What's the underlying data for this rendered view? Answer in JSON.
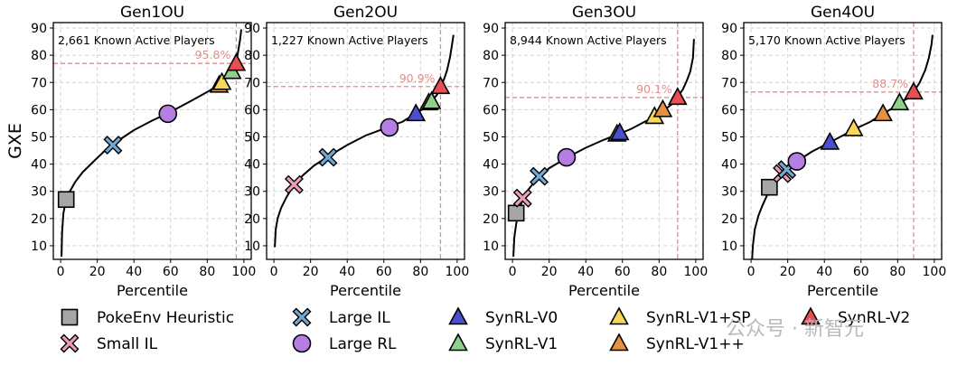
{
  "chart_data": [
    {
      "type": "line+scatter",
      "title": "Gen1OU",
      "annotation": "2,661 Known Active Players",
      "threshold_label": "95.8%",
      "threshold_x": 95.8,
      "threshold_y": 77,
      "xlabel": "Percentile",
      "ylabel": "GXE",
      "xlim": [
        -4,
        104
      ],
      "ylim": [
        5,
        92
      ],
      "xticks": [
        0,
        20,
        40,
        60,
        80,
        100
      ],
      "yticks": [
        10,
        20,
        30,
        40,
        50,
        60,
        70,
        80,
        90
      ],
      "curve": [
        [
          0.5,
          6
        ],
        [
          0.8,
          15
        ],
        [
          1.5,
          22
        ],
        [
          3,
          27
        ],
        [
          5,
          30
        ],
        [
          8,
          33.5
        ],
        [
          12,
          37
        ],
        [
          18,
          41
        ],
        [
          25,
          45.5
        ],
        [
          30,
          48
        ],
        [
          40,
          52.5
        ],
        [
          50,
          56
        ],
        [
          58,
          58.5
        ],
        [
          65,
          61
        ],
        [
          72,
          63.5
        ],
        [
          80,
          66.5
        ],
        [
          86,
          69
        ],
        [
          90,
          71.5
        ],
        [
          93,
          74
        ],
        [
          95,
          77
        ],
        [
          96.5,
          80
        ],
        [
          97.5,
          84
        ],
        [
          98,
          86
        ],
        [
          98.6,
          89.5
        ]
      ],
      "points": [
        {
          "agent": "PokeEnv Heuristic",
          "x": 3,
          "y": 27
        },
        {
          "agent": "Large IL",
          "x": 28.5,
          "y": 47
        },
        {
          "agent": "Large RL",
          "x": 58.5,
          "y": 58.5
        },
        {
          "agent": "SynRL-V1++",
          "x": 86.5,
          "y": 69
        },
        {
          "agent": "SynRL-V1+SP",
          "x": 88,
          "y": 70
        },
        {
          "agent": "SynRL-V1",
          "x": 93.5,
          "y": 74
        },
        {
          "agent": "SynRL-V2",
          "x": 95.8,
          "y": 77
        }
      ]
    },
    {
      "type": "line+scatter",
      "title": "Gen2OU",
      "annotation": "1,227 Known Active Players",
      "threshold_label": "90.9%",
      "threshold_x": 90.9,
      "threshold_y": 68.5,
      "xlabel": "Percentile",
      "ylabel": "",
      "xlim": [
        -4,
        104
      ],
      "ylim": [
        5,
        92
      ],
      "xticks": [
        0,
        20,
        40,
        60,
        80,
        100
      ],
      "yticks": [
        10,
        20,
        30,
        40,
        50,
        60,
        70,
        80,
        90
      ],
      "curve": [
        [
          0.5,
          9.5
        ],
        [
          1,
          16
        ],
        [
          2,
          20
        ],
        [
          4,
          24
        ],
        [
          7,
          28
        ],
        [
          11,
          32.5
        ],
        [
          16,
          36
        ],
        [
          22,
          39.5
        ],
        [
          30,
          43
        ],
        [
          40,
          47
        ],
        [
          50,
          50.5
        ],
        [
          60,
          53
        ],
        [
          63.5,
          54
        ],
        [
          70,
          55.5
        ],
        [
          77,
          58.5
        ],
        [
          82,
          60.5
        ],
        [
          86,
          63
        ],
        [
          89,
          65.5
        ],
        [
          91,
          68.5
        ],
        [
          93,
          71.5
        ],
        [
          94.5,
          74.5
        ],
        [
          96,
          79
        ],
        [
          97,
          83
        ],
        [
          98,
          87.5
        ]
      ],
      "points": [
        {
          "agent": "Small IL",
          "x": 11,
          "y": 32.5
        },
        {
          "agent": "Large IL",
          "x": 29.5,
          "y": 42.5
        },
        {
          "agent": "Large RL",
          "x": 63,
          "y": 53.5
        },
        {
          "agent": "SynRL-V0",
          "x": 77.5,
          "y": 58.5
        },
        {
          "agent": "SynRL-V1++",
          "x": 84.5,
          "y": 62.5
        },
        {
          "agent": "SynRL-V1",
          "x": 86,
          "y": 63
        },
        {
          "agent": "SynRL-V2",
          "x": 90.9,
          "y": 68.5
        }
      ]
    },
    {
      "type": "line+scatter",
      "title": "Gen3OU",
      "annotation": "8,944 Known Active Players",
      "threshold_label": "90.1%",
      "threshold_x": 90.1,
      "threshold_y": 64.5,
      "xlabel": "Percentile",
      "ylabel": "",
      "xlim": [
        -4,
        104
      ],
      "ylim": [
        5,
        92
      ],
      "xticks": [
        0,
        20,
        40,
        60,
        80,
        100
      ],
      "yticks": [
        10,
        20,
        30,
        40,
        50,
        60,
        70,
        80,
        90
      ],
      "curve": [
        [
          0.5,
          6
        ],
        [
          1,
          13
        ],
        [
          2,
          18
        ],
        [
          3,
          22
        ],
        [
          5,
          26
        ],
        [
          8,
          30
        ],
        [
          12,
          33.5
        ],
        [
          15,
          35.5
        ],
        [
          20,
          38.5
        ],
        [
          30,
          42.5
        ],
        [
          40,
          46
        ],
        [
          50,
          49
        ],
        [
          58,
          51
        ],
        [
          65,
          53
        ],
        [
          72,
          55.5
        ],
        [
          78,
          57.5
        ],
        [
          83,
          60
        ],
        [
          87,
          62
        ],
        [
          90,
          64.5
        ],
        [
          93,
          67.5
        ],
        [
          95,
          70.5
        ],
        [
          97,
          74
        ],
        [
          98.5,
          79
        ],
        [
          99,
          86
        ]
      ],
      "points": [
        {
          "agent": "PokeEnv Heuristic",
          "x": 2,
          "y": 22
        },
        {
          "agent": "Small IL",
          "x": 5.5,
          "y": 27.5
        },
        {
          "agent": "Large IL",
          "x": 14.5,
          "y": 35.5
        },
        {
          "agent": "Large RL",
          "x": 29.5,
          "y": 42.5
        },
        {
          "agent": "SynRL-V1",
          "x": 57,
          "y": 51
        },
        {
          "agent": "SynRL-V0",
          "x": 58.5,
          "y": 51.5
        },
        {
          "agent": "SynRL-V1+SP",
          "x": 77.5,
          "y": 57.5
        },
        {
          "agent": "SynRL-V1++",
          "x": 82,
          "y": 60
        },
        {
          "agent": "SynRL-V2",
          "x": 90.1,
          "y": 64.5
        }
      ]
    },
    {
      "type": "line+scatter",
      "title": "Gen4OU",
      "annotation": "5,170 Known Active Players",
      "threshold_label": "88.7%",
      "threshold_x": 88.7,
      "threshold_y": 66.5,
      "xlabel": "Percentile",
      "ylabel": "",
      "xlim": [
        -4,
        104
      ],
      "ylim": [
        5,
        92
      ],
      "xticks": [
        0,
        20,
        40,
        60,
        80,
        100
      ],
      "yticks": [
        10,
        20,
        30,
        40,
        50,
        60,
        70,
        80,
        90
      ],
      "curve": [
        [
          0.5,
          4
        ],
        [
          1,
          10
        ],
        [
          2,
          16
        ],
        [
          4,
          21
        ],
        [
          6,
          24.5
        ],
        [
          9,
          29
        ],
        [
          12,
          32.5
        ],
        [
          16,
          35.5
        ],
        [
          20,
          38.5
        ],
        [
          25,
          41
        ],
        [
          33,
          44.5
        ],
        [
          43,
          48
        ],
        [
          50,
          50.5
        ],
        [
          57,
          53
        ],
        [
          65,
          55.5
        ],
        [
          72,
          58.5
        ],
        [
          77,
          60.5
        ],
        [
          81,
          62.5
        ],
        [
          85,
          64
        ],
        [
          88.7,
          66.5
        ],
        [
          92,
          70
        ],
        [
          95,
          74.5
        ],
        [
          97,
          79
        ],
        [
          98.5,
          84
        ],
        [
          99,
          87.5
        ]
      ],
      "points": [
        {
          "agent": "PokeEnv Heuristic",
          "x": 10,
          "y": 31.5
        },
        {
          "agent": "Small IL",
          "x": 17,
          "y": 36.5
        },
        {
          "agent": "Large IL",
          "x": 19.5,
          "y": 38
        },
        {
          "agent": "Large RL",
          "x": 25,
          "y": 41
        },
        {
          "agent": "SynRL-V0",
          "x": 43,
          "y": 48
        },
        {
          "agent": "SynRL-V1+SP",
          "x": 56,
          "y": 53
        },
        {
          "agent": "SynRL-V1++",
          "x": 72,
          "y": 58.5
        },
        {
          "agent": "SynRL-V1",
          "x": 81,
          "y": 62.5
        },
        {
          "agent": "SynRL-V2",
          "x": 88.7,
          "y": 66.5
        }
      ]
    }
  ],
  "legend": [
    {
      "name": "PokeEnv Heuristic",
      "marker": "square",
      "color": "#a6a6a6"
    },
    {
      "name": "Small IL",
      "marker": "cross",
      "color": "#ef9cbb"
    },
    {
      "name": "Large IL",
      "marker": "cross",
      "color": "#72a9d3"
    },
    {
      "name": "Large RL",
      "marker": "circle",
      "color": "#b57ee2"
    },
    {
      "name": "SynRL-V0",
      "marker": "triangle",
      "color": "#4a4fd0"
    },
    {
      "name": "SynRL-V1",
      "marker": "triangle",
      "color": "#8fd18a"
    },
    {
      "name": "SynRL-V1+SP",
      "marker": "triangle",
      "color": "#f5d85a"
    },
    {
      "name": "SynRL-V1++",
      "marker": "triangle",
      "color": "#e69140"
    },
    {
      "name": "SynRL-V2",
      "marker": "triangle",
      "color": "#e84f52"
    }
  ],
  "colors": {
    "threshold": "#e88a8a",
    "grid": "#cfcfcf",
    "curve": "#000000"
  },
  "watermark": "公众号 · 新智元"
}
